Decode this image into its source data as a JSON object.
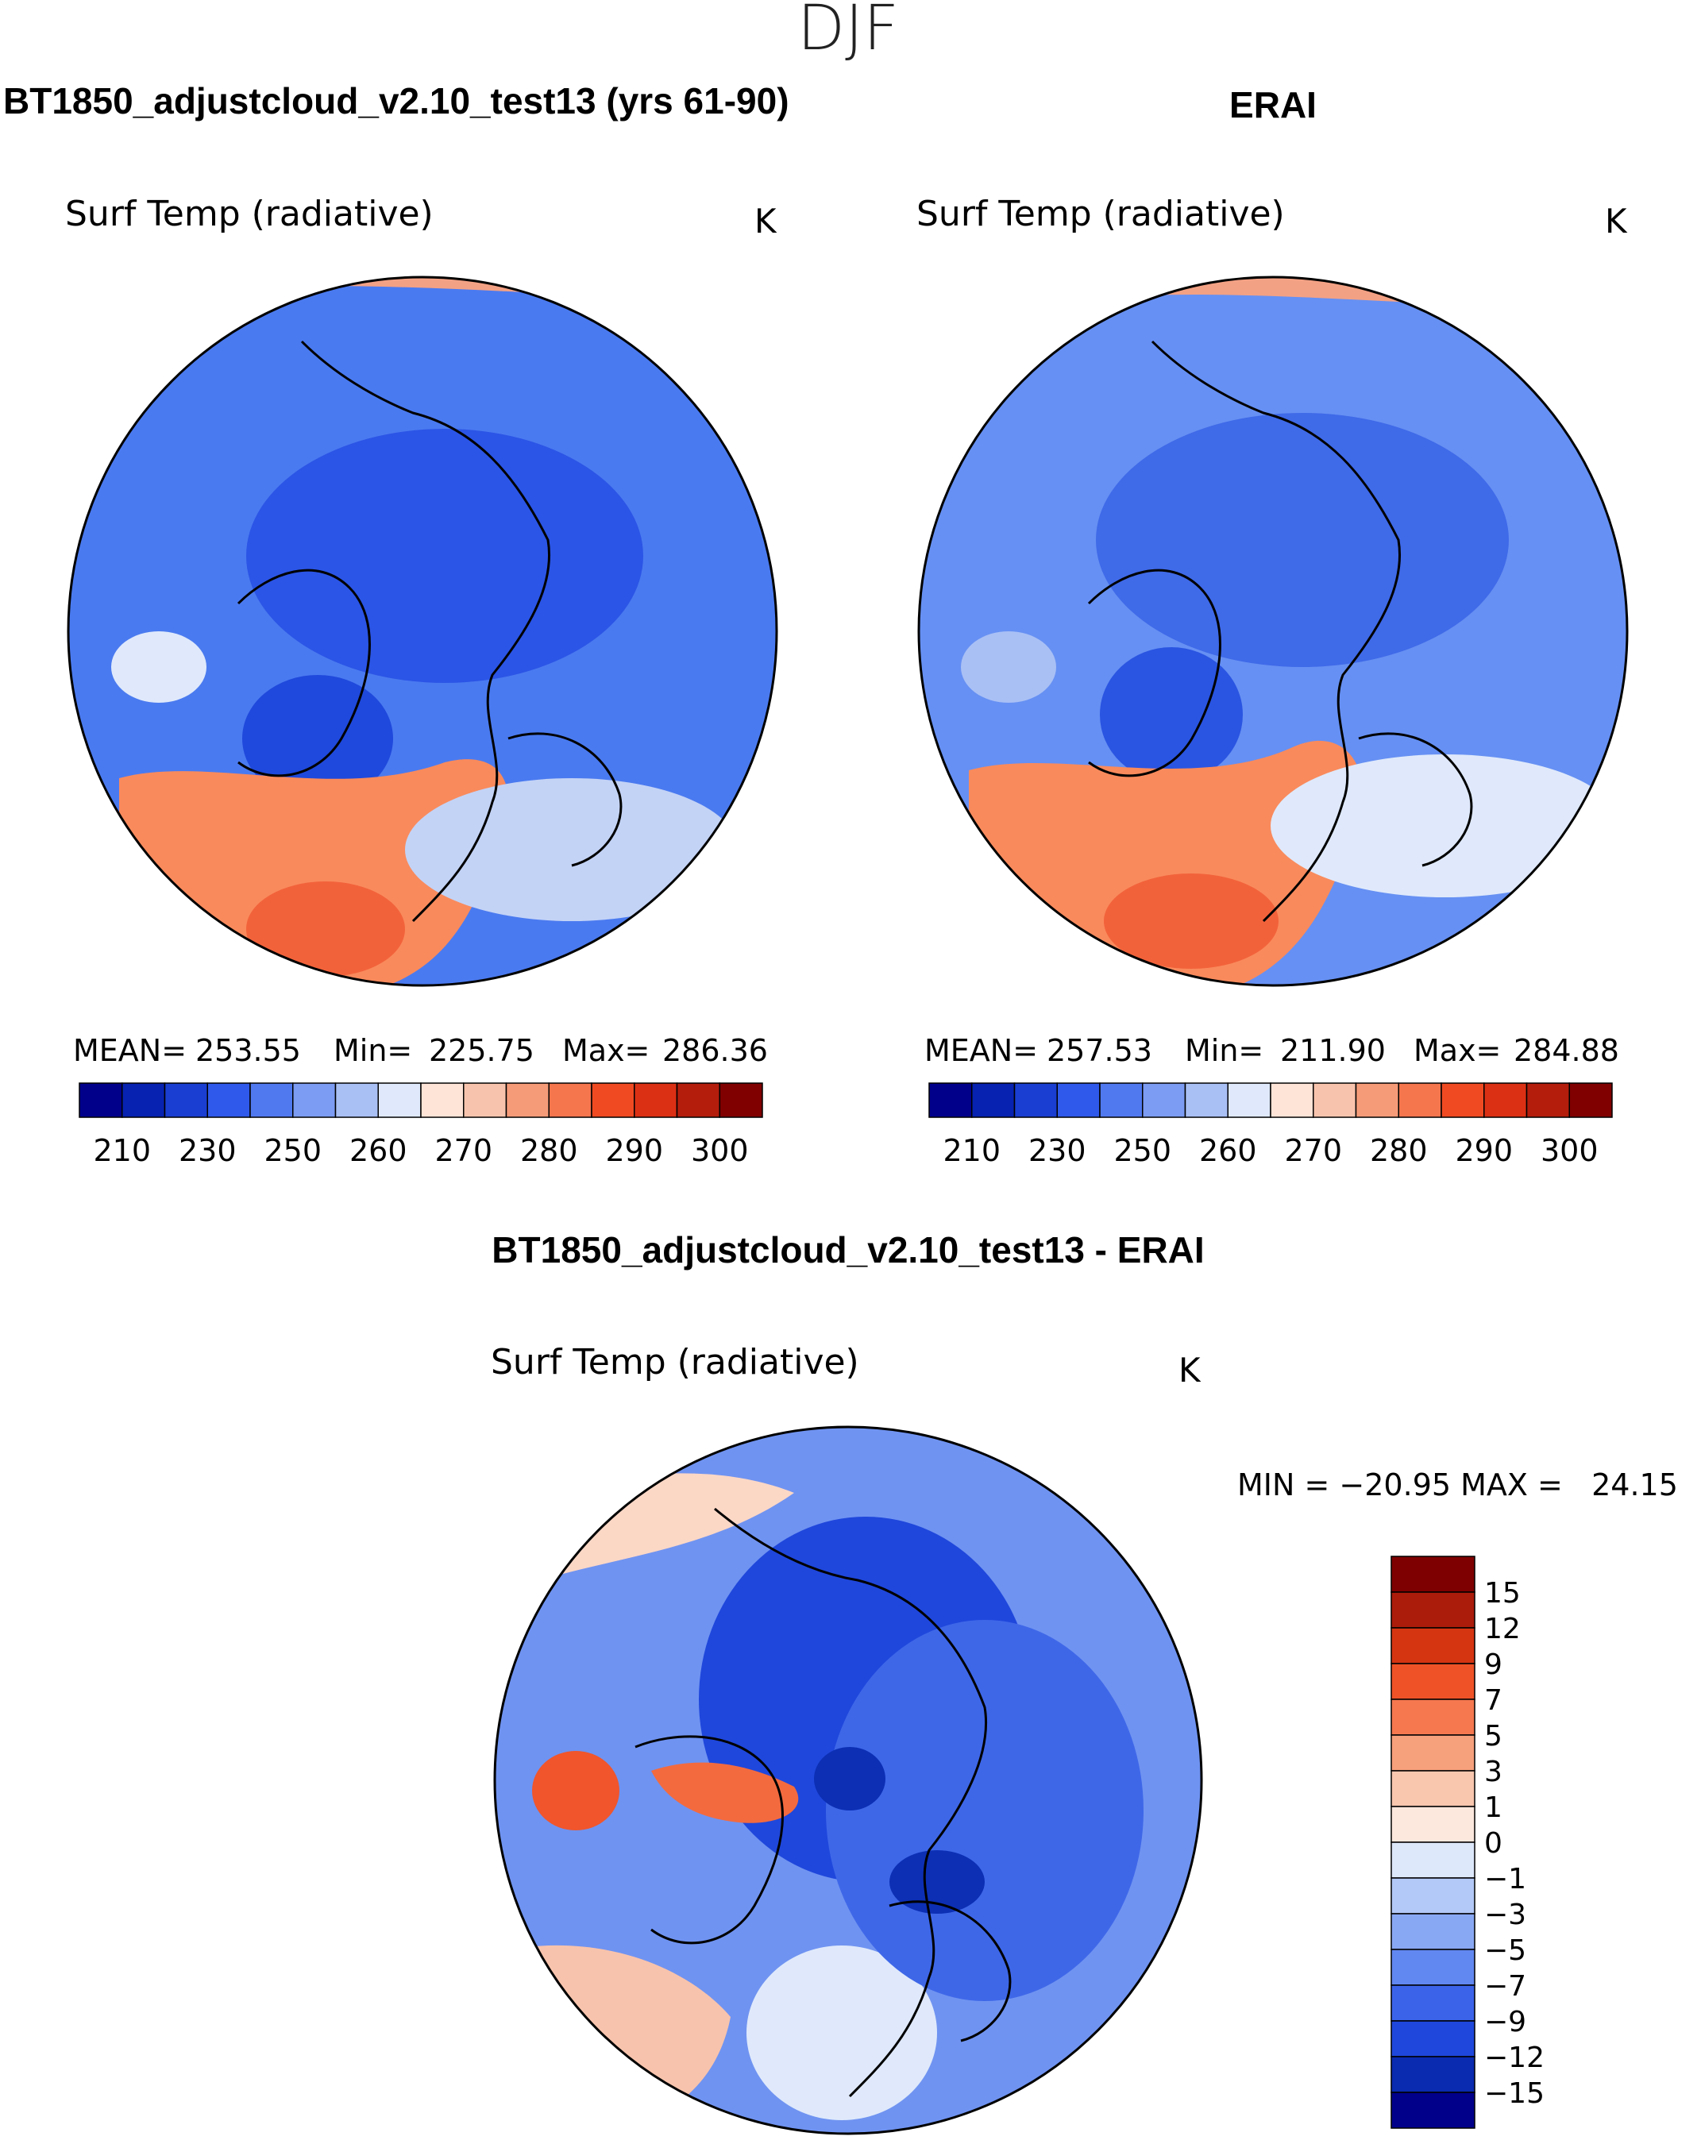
{
  "figure": {
    "season": "DJF"
  },
  "panels": [
    {
      "id": "model",
      "header": "BT1850_adjustcloud_v2.10_test13 (yrs 61-90)",
      "variable": "Surf Temp (radiative)",
      "units": "K",
      "stats": {
        "mean_label": "MEAN=",
        "mean": "253.55",
        "min_label": "Min=",
        "min": "225.75",
        "max_label": "Max=",
        "max": "286.36"
      },
      "field": {
        "base_color": "#4a7af0",
        "regions": [
          {
            "name": "arctic-ocean-core",
            "color": "#2b55e6"
          },
          {
            "name": "greenland",
            "color": "#1f49dc"
          },
          {
            "name": "north-pacific-warm",
            "color": "#f3a184"
          },
          {
            "name": "north-atlantic-warm",
            "color": "#f98a5c"
          },
          {
            "name": "gulf-stream-core",
            "color": "#f2623a"
          },
          {
            "name": "scandinavia-mild",
            "color": "#c3d3f6"
          },
          {
            "name": "alaska-pocket",
            "color": "#dfe9fb"
          }
        ]
      }
    },
    {
      "id": "obs",
      "header": "ERAI",
      "variable": "Surf Temp (radiative)",
      "units": "K",
      "stats": {
        "mean_label": "MEAN=",
        "mean": "257.53",
        "min_label": "Min=",
        "min": "211.90",
        "max_label": "Max=",
        "max": "284.88"
      },
      "field": {
        "base_color": "#6690f3",
        "regions": [
          {
            "name": "arctic-ocean-core",
            "color": "#3f6ae8"
          },
          {
            "name": "greenland",
            "color": "#2a55e2"
          },
          {
            "name": "north-pacific-warm",
            "color": "#f3a184"
          },
          {
            "name": "north-atlantic-warm",
            "color": "#f98a5c"
          },
          {
            "name": "gulf-stream-core",
            "color": "#f2623a"
          },
          {
            "name": "scandinavia-mild",
            "color": "#dfe9fb"
          },
          {
            "name": "alaska-pocket",
            "color": "#a9c0f5"
          }
        ]
      }
    }
  ],
  "abs_colorbar": {
    "colors": [
      "#00008b",
      "#0722b0",
      "#1a3ed1",
      "#2f59ea",
      "#5079f0",
      "#7c9bf2",
      "#a9c0f5",
      "#dfe9fb",
      "#fde4d6",
      "#f8c3ac",
      "#f69b78",
      "#f5754d",
      "#f04a22",
      "#db3014",
      "#b41d0c",
      "#800000"
    ],
    "labels": [
      "210",
      "230",
      "250",
      "260",
      "270",
      "280",
      "290",
      "300"
    ]
  },
  "diff_panel": {
    "header": "BT1850_adjustcloud_v2.10_test13 - ERAI",
    "variable": "Surf Temp (radiative)",
    "units": "K",
    "stats_text": "MIN = −20.95 MAX =   24.15",
    "field": {
      "base_color": "#6f93f1",
      "regions": [
        {
          "name": "central-arctic-cold",
          "color": "#1f47dc"
        },
        {
          "name": "siberia-cold",
          "color": "#3e67e8"
        },
        {
          "name": "pole-minimum",
          "color": "#0c2fb4"
        },
        {
          "name": "archipelago-warm",
          "color": "#f36a3f"
        },
        {
          "name": "hudson-bay-warm",
          "color": "#f0552c"
        },
        {
          "name": "north-pacific-mild",
          "color": "#fbd7c6"
        },
        {
          "name": "atlantic-mild",
          "color": "#f8c3ac"
        },
        {
          "name": "europe-neutral",
          "color": "#dfe9fb"
        }
      ]
    },
    "colorbar": {
      "colors": [
        "#00008b",
        "#0a2aaf",
        "#1f47dc",
        "#3b63ea",
        "#6187f1",
        "#89a8f4",
        "#b3c9f7",
        "#dde8fb",
        "#fde8dd",
        "#f9c6ae",
        "#f7a07c",
        "#f5784f",
        "#ef5227",
        "#d63512",
        "#ab1c0a",
        "#7f0000"
      ],
      "labels": [
        "15",
        "12",
        "9",
        "7",
        "5",
        "3",
        "1",
        "0",
        "−1",
        "−3",
        "−5",
        "−7",
        "−9",
        "−12",
        "−15"
      ]
    }
  }
}
